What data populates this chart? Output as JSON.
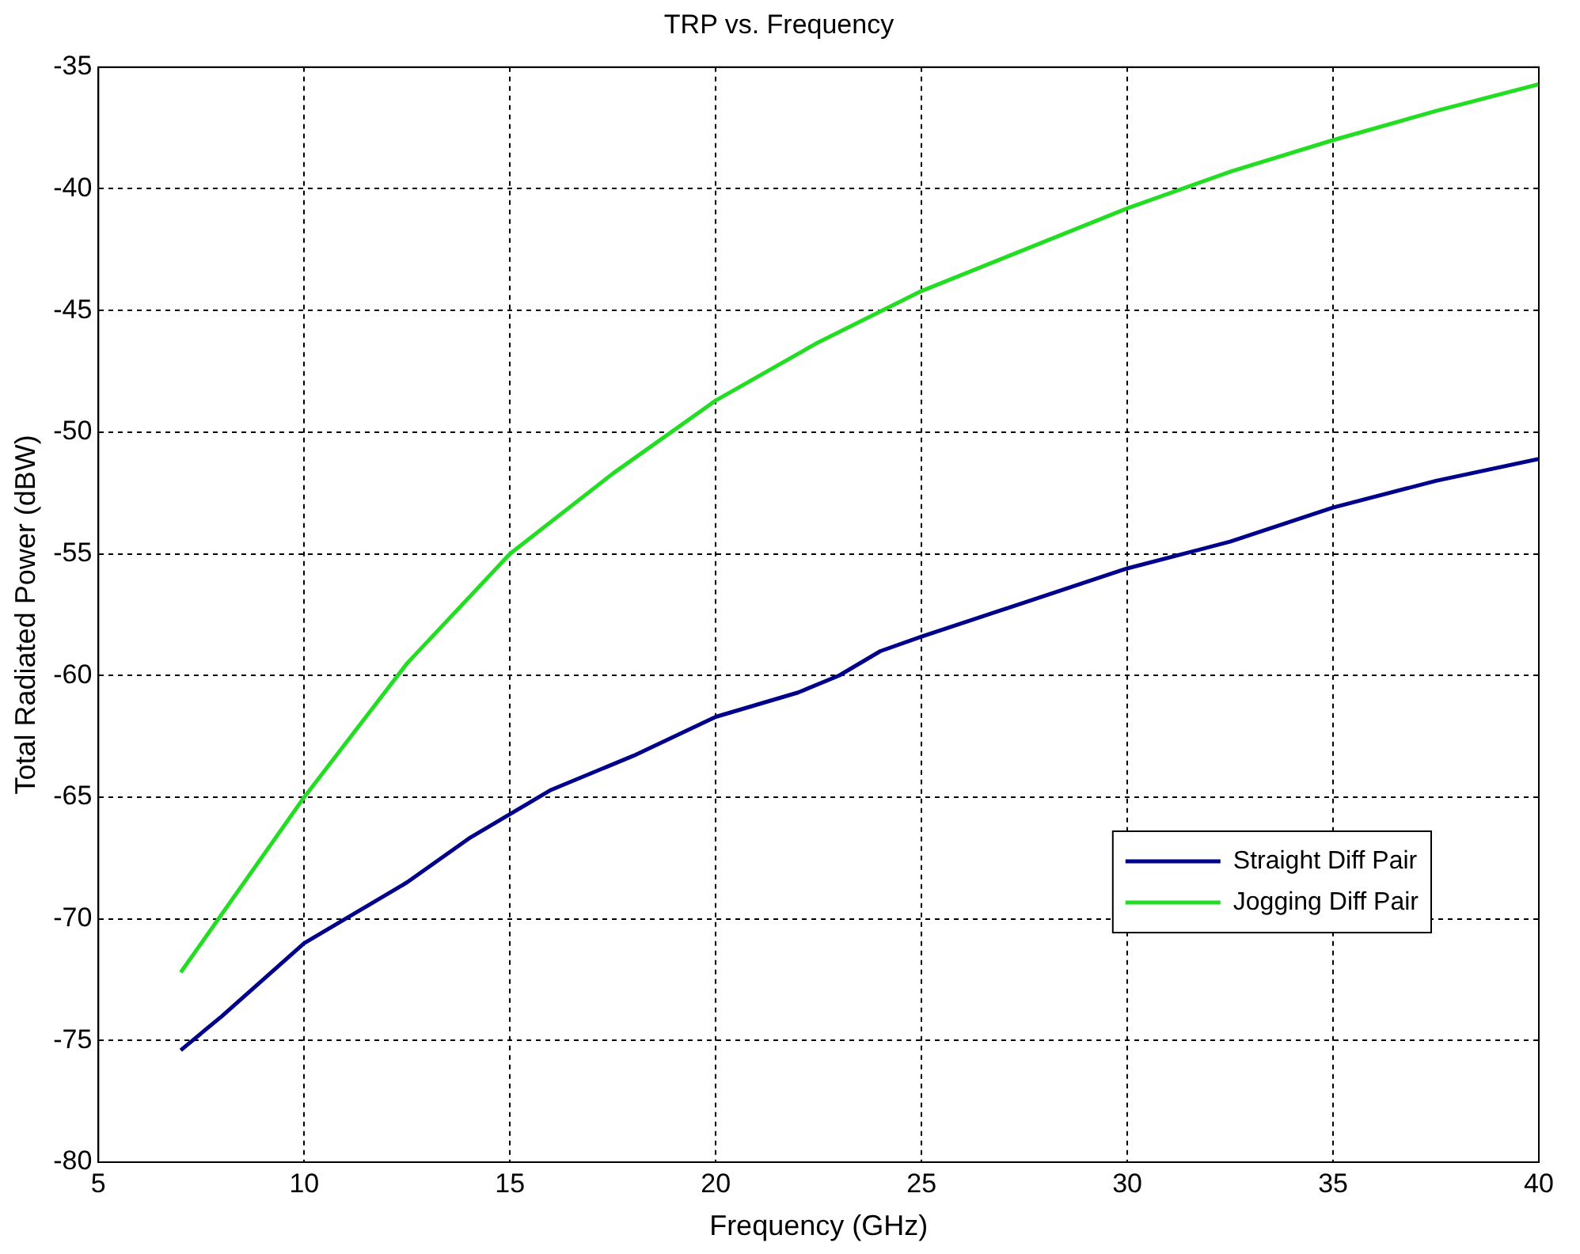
{
  "chart_data": {
    "type": "line",
    "title": "TRP vs. Frequency",
    "xlabel": "Frequency (GHz)",
    "ylabel": "Total Radiated Power (dBW)",
    "xlim": [
      5,
      40
    ],
    "xticks": [
      5,
      10,
      15,
      20,
      25,
      30,
      35,
      40
    ],
    "ylim": [
      -80,
      -35
    ],
    "yticks": [
      -80,
      -75,
      -70,
      -65,
      -60,
      -55,
      -50,
      -45,
      -40,
      -35
    ],
    "grid": true,
    "legend": "bottom right",
    "line_style": "solid",
    "marker": "none",
    "series": [
      {
        "name": "Straight Diff Pair",
        "color": "#00008b",
        "x": [
          7,
          8,
          10,
          12.5,
          14,
          15,
          16,
          18,
          20,
          22,
          23,
          24,
          25,
          27.5,
          30,
          32.5,
          35,
          37.5,
          40
        ],
        "values": [
          -75.4,
          -74,
          -71,
          -68.5,
          -66.7,
          -65.7,
          -64.7,
          -63.3,
          -61.7,
          -60.7,
          -60,
          -59,
          -58.4,
          -57,
          -55.6,
          -54.5,
          -53.1,
          -52,
          -51.1
        ]
      },
      {
        "name": "Jogging Diff Pair",
        "color": "#22dd22",
        "x": [
          7,
          10,
          12.5,
          15,
          17.5,
          20,
          22.5,
          25,
          27.5,
          30,
          32.5,
          35,
          37.5,
          40
        ],
        "values": [
          -72.2,
          -65,
          -59.5,
          -55,
          -51.7,
          -48.7,
          -46.3,
          -44.2,
          -42.5,
          -40.8,
          -39.3,
          -38,
          -36.8,
          -35.7
        ]
      }
    ]
  }
}
